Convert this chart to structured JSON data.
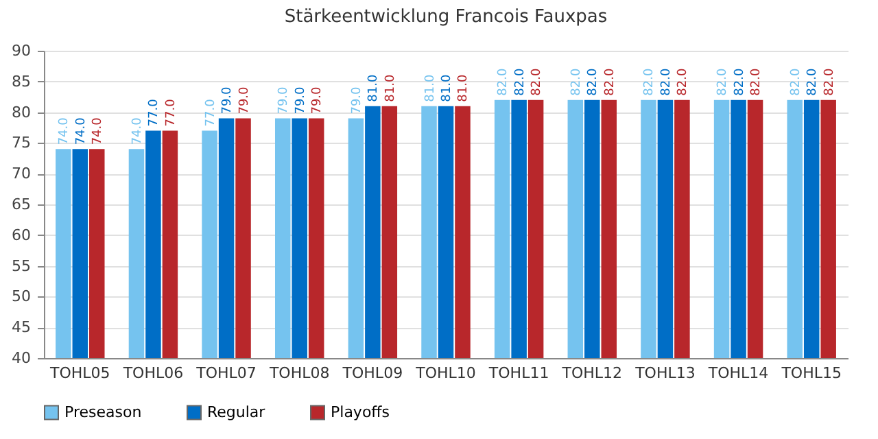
{
  "chart_data": {
    "type": "bar",
    "title": "Stärkeentwicklung Francois Fauxpas",
    "categories": [
      "TOHL05",
      "TOHL06",
      "TOHL07",
      "TOHL08",
      "TOHL09",
      "TOHL10",
      "TOHL11",
      "TOHL12",
      "TOHL13",
      "TOHL14",
      "TOHL15"
    ],
    "series": [
      {
        "name": "Preseason",
        "color": "#75c3ef",
        "values": [
          74,
          74,
          77,
          79,
          79,
          81,
          82,
          82,
          82,
          82,
          82
        ],
        "value_labels": [
          "74.0",
          "74.0",
          "77.0",
          "79.0",
          "79.0",
          "81.0",
          "82.0",
          "82.0",
          "82.0",
          "82.0",
          "82.0"
        ]
      },
      {
        "name": "Regular",
        "color": "#006ec6",
        "values": [
          74,
          77,
          79,
          79,
          81,
          81,
          82,
          82,
          82,
          82,
          82
        ],
        "value_labels": [
          "74.0",
          "77.0",
          "79.0",
          "79.0",
          "81.0",
          "81.0",
          "82.0",
          "82.0",
          "82.0",
          "82.0",
          "82.0"
        ]
      },
      {
        "name": "Playoffs",
        "color": "#b8272b",
        "values": [
          74,
          77,
          79,
          79,
          81,
          81,
          82,
          82,
          82,
          82,
          82
        ],
        "value_labels": [
          "74.0",
          "77.0",
          "79.0",
          "79.0",
          "81.0",
          "81.0",
          "82.0",
          "82.0",
          "82.0",
          "82.0",
          "82.0"
        ]
      }
    ],
    "ylim": [
      40,
      90
    ],
    "yticks": [
      40,
      45,
      50,
      55,
      60,
      65,
      70,
      75,
      80,
      85,
      90
    ],
    "grid": "y",
    "legend": "bottom"
  }
}
